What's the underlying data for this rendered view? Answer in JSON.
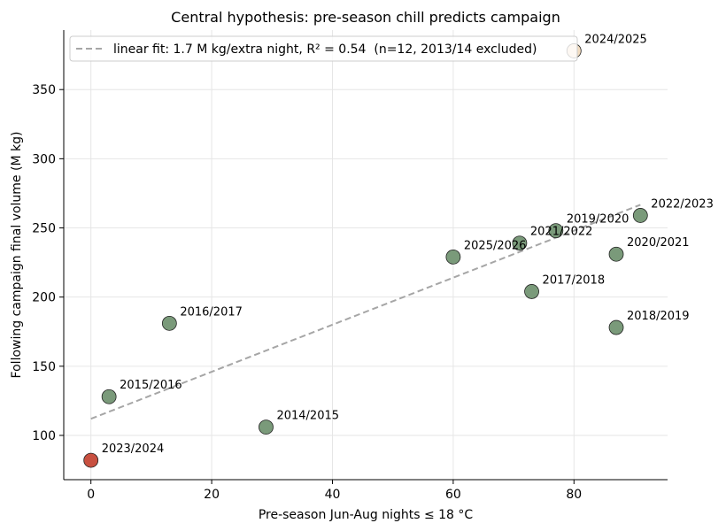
{
  "chart_data": {
    "type": "scatter",
    "title": "Central hypothesis: pre-season chill predicts campaign",
    "xlabel": "Pre-season Jun-Aug nights ≤ 18 °C",
    "ylabel": "Following campaign final volume (M kg)",
    "xlim": [
      -4.5,
      95.5
    ],
    "ylim": [
      68,
      393
    ],
    "xticks": [
      0,
      20,
      40,
      60,
      80
    ],
    "yticks": [
      100,
      150,
      200,
      250,
      300,
      350
    ],
    "grid": true,
    "legend_position": "top-left",
    "legend": "linear fit: 1.7 M kg/extra night, R² = 0.54  (n=12, 2013/14 excluded)",
    "fit": {
      "slope": 1.7,
      "intercept": 112,
      "x_range": [
        0,
        91
      ],
      "r2": 0.54,
      "n": 12
    },
    "colors": {
      "point": "#7a9a7a",
      "highlight_low": "#c85040",
      "highlight_high": "#f2dcc0",
      "fit": "#a6a6a6"
    },
    "points": [
      {
        "label": "2014/2015",
        "x": 29,
        "y": 106,
        "color": "#7a9a7a"
      },
      {
        "label": "2015/2016",
        "x": 3,
        "y": 128,
        "color": "#7a9a7a"
      },
      {
        "label": "2016/2017",
        "x": 13,
        "y": 181,
        "color": "#7a9a7a"
      },
      {
        "label": "2017/2018",
        "x": 73,
        "y": 204,
        "color": "#7a9a7a"
      },
      {
        "label": "2018/2019",
        "x": 87,
        "y": 178,
        "color": "#7a9a7a"
      },
      {
        "label": "2019/2020",
        "x": 77,
        "y": 248,
        "color": "#7a9a7a"
      },
      {
        "label": "2020/2021",
        "x": 87,
        "y": 231,
        "color": "#7a9a7a"
      },
      {
        "label": "2021/2022",
        "x": 71,
        "y": 239,
        "color": "#7a9a7a"
      },
      {
        "label": "2022/2023",
        "x": 91,
        "y": 259,
        "color": "#7a9a7a"
      },
      {
        "label": "2023/2024",
        "x": 0,
        "y": 82,
        "color": "#c85040"
      },
      {
        "label": "2024/2025",
        "x": 80,
        "y": 378,
        "color": "#f2dcc0"
      },
      {
        "label": "2025/2026",
        "x": 60,
        "y": 229,
        "color": "#7a9a7a"
      }
    ]
  }
}
